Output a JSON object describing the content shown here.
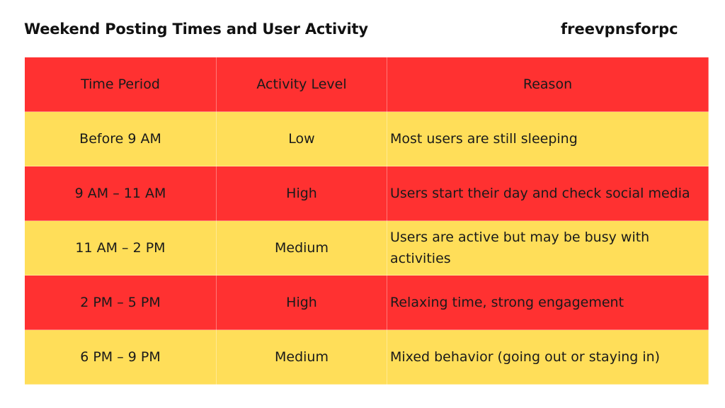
{
  "header": {
    "title": "Weekend Posting Times and User Activity",
    "brand": "freevpnsforpc"
  },
  "table": {
    "columns": [
      "Time Period",
      "Activity Level",
      "Reason"
    ],
    "rows": [
      [
        "Before 9 AM",
        "Low",
        "Most users are still sleeping"
      ],
      [
        "9 AM – 11 AM",
        "High",
        "Users start their day and check social media"
      ],
      [
        "11 AM – 2 PM",
        "Medium",
        "Users are active but may be busy with activities"
      ],
      [
        "2 PM – 5 PM",
        "High",
        "Relaxing time, strong engagement"
      ],
      [
        "6 PM – 9 PM",
        "Medium",
        "Mixed behavior (going out or staying in)"
      ]
    ]
  },
  "colors": {
    "red": "#ff3131",
    "yellow": "#ffde59"
  }
}
